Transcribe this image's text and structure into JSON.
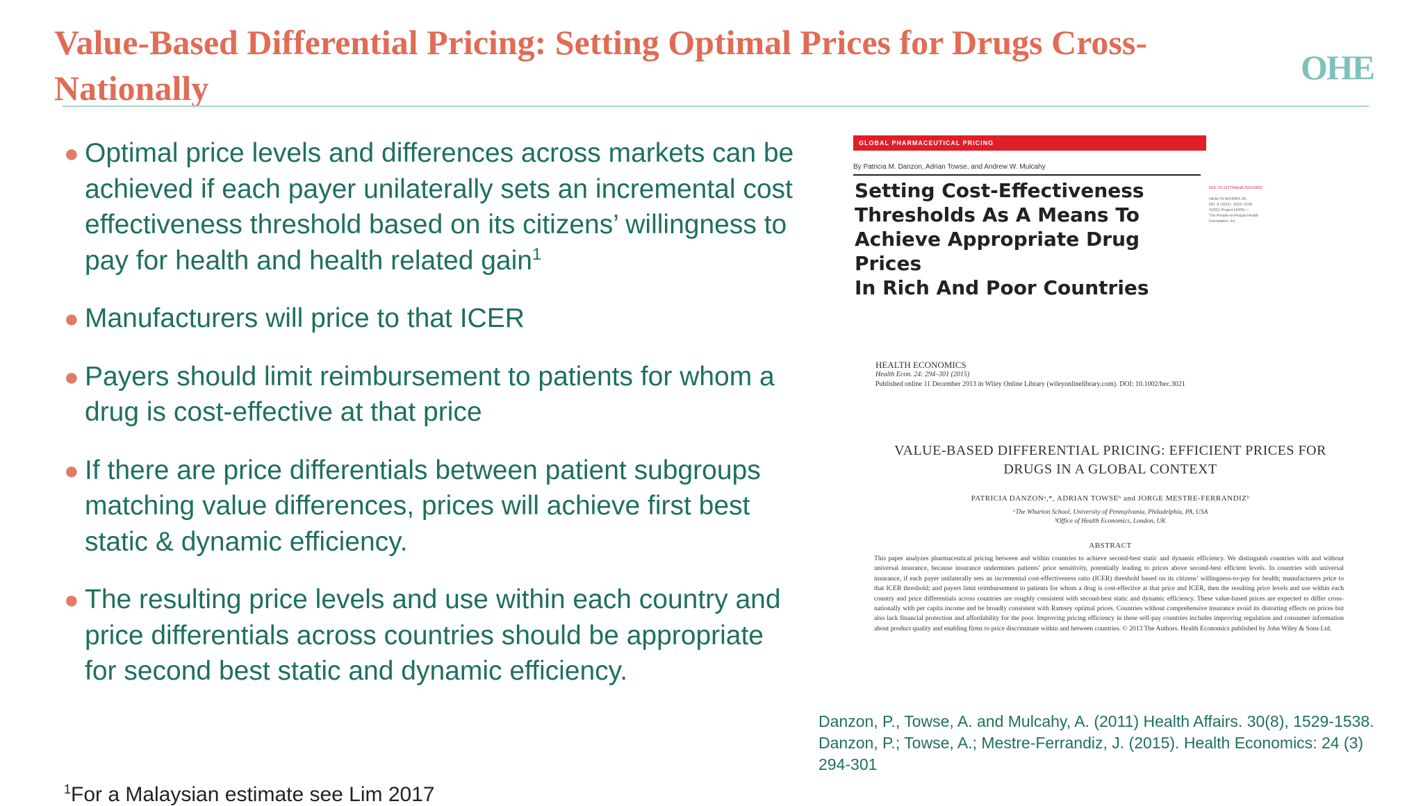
{
  "slide": {
    "title": "Value-Based Differential Pricing: Setting Optimal Prices for Drugs Cross-Nationally",
    "logo": "OHE"
  },
  "bullets": [
    {
      "text": "Optimal price levels and differences across markets can be achieved if each payer unilaterally sets an incremental cost effectiveness threshold based on its citizens’ willingness to pay for health and health related gain",
      "sup": "1"
    },
    {
      "text": "Manufacturers will price to that ICER",
      "sup": ""
    },
    {
      "text": "Payers should limit reimbursement to patients for whom a drug is cost-effective at that price",
      "sup": ""
    },
    {
      "text": "If there are price differentials between patient subgroups matching value differences, prices will achieve first best static & dynamic efficiency.",
      "sup": ""
    },
    {
      "text": "The resulting price levels and use within each country and price differentials across countries should be appropriate for second best static and dynamic efficiency.",
      "sup": ""
    }
  ],
  "bullet_marker": "●",
  "footnote": {
    "sup": "1",
    "text": "For a Malaysian estimate see Lim 2017"
  },
  "references": [
    "Danzon, P., Towse, A. and Mulcahy, A. (2011) Health Affairs. 30(8), 1529-1538.",
    "Danzon, P.; Towse, A.; Mestre-Ferrandiz, J. (2015). Health Economics: 24 (3) 294-301"
  ],
  "paper1": {
    "banner": "GLOBAL PHARMACEUTICAL PRICING",
    "authors": "By Patricia M. Danzon, Adrian Towse, and Andrew W. Mulcahy",
    "title": "Setting Cost-Effectiveness\nThresholds As A Means To\nAchieve Appropriate Drug Prices\nIn Rich And Poor Countries",
    "meta_doi": "DOI: 10.1377/hlthaff.2010.0902",
    "meta_rest": "HEALTH AFFAIRS 30,\nNO. 8 (2011): 1529–1538\n©2011 Project HOPE—\nThe People-to-People Health\nFoundation, Inc."
  },
  "paper2": {
    "journal": "HEALTH ECONOMICS",
    "volume": "Health Econ. 24: 294–301 (2015)",
    "published": "Published online 11 December 2013 in Wiley Online Library (wileyonlinelibrary.com). DOI: 10.1002/hec.3021",
    "title": "VALUE-BASED DIFFERENTIAL PRICING: EFFICIENT PRICES FOR\nDRUGS IN A GLOBAL CONTEXT",
    "authors": "PATRICIA DANZONᵃ,*, ADRIAN TOWSEᵇ and JORGE MESTRE-FERRANDIZᵇ",
    "affiliations": "ᵃThe Wharton School, University of Pennsylvania, Philadelphia, PA, USA\nᵇOffice of Health Economics, London, UK",
    "abstract_heading": "ABSTRACT",
    "abstract": "This paper analyzes pharmaceutical pricing between and within countries to achieve second-best static and dynamic efficiency. We distinguish countries with and without universal insurance, because insurance undermines patients’ price sensitivity, potentially leading to prices above second-best efficient levels. In countries with universal insurance, if each payer unilaterally sets an incremental cost-effectiveness ratio (ICER) threshold based on its citizens’ willingness-to-pay for health; manufacturers price to that ICER threshold; and payers limit reimbursement to patients for whom a drug is cost-effective at that price and ICER, then the resulting price levels and use within each country and price differentials across countries are roughly consistent with second-best static and dynamic efficiency. These value-based prices are expected to differ cross-nationally with per capita income and be broadly consistent with Ramsey optimal prices. Countries without comprehensive insurance avoid its distorting effects on prices but also lack financial protection and affordability for the poor. Improving pricing efficiency in these self-pay countries includes improving regulation and consumer information about product quality and enabling firms to price discriminate within and between countries. © 2013 The Authors. Health Economics published by John Wiley & Sons Ltd."
  }
}
